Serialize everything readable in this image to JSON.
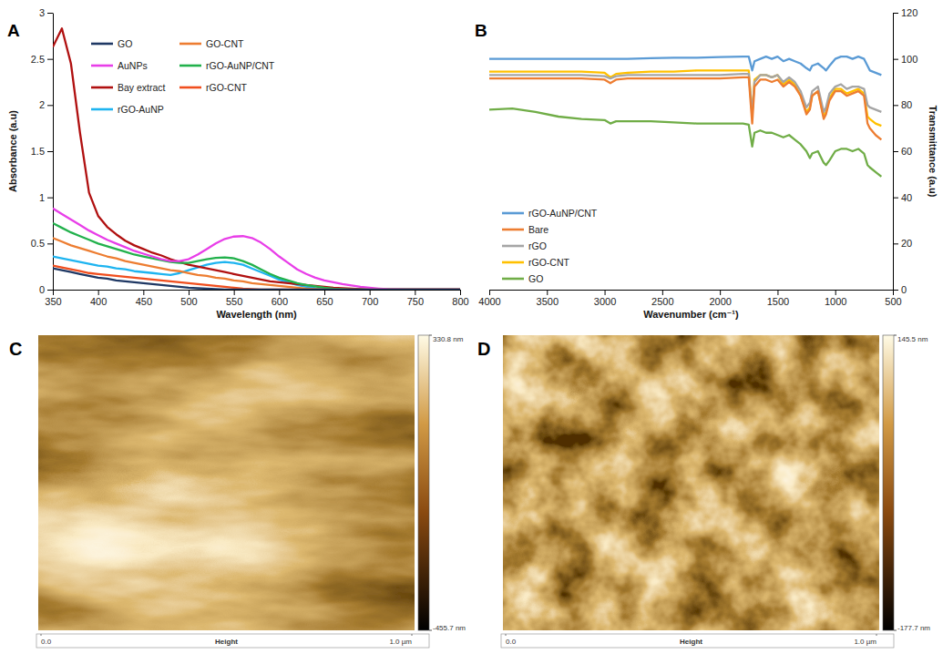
{
  "chart_data": [
    {
      "type": "line",
      "panel": "A",
      "xlabel": "Wavelength (nm)",
      "ylabel": "Absorbance (a.u)",
      "xlim": [
        350,
        800
      ],
      "xticks": [
        350,
        400,
        450,
        500,
        550,
        600,
        650,
        700,
        750,
        800
      ],
      "ylim": [
        0,
        3
      ],
      "yticks": [
        0,
        0.5,
        1,
        1.5,
        2,
        2.5,
        3
      ],
      "grid": false,
      "legend": "top-left",
      "x": [
        350,
        360,
        370,
        380,
        390,
        400,
        410,
        420,
        430,
        440,
        450,
        460,
        470,
        480,
        490,
        500,
        510,
        520,
        530,
        540,
        550,
        560,
        570,
        580,
        590,
        600,
        610,
        620,
        630,
        640,
        650,
        660,
        670,
        680,
        690,
        700,
        710,
        720,
        730,
        740,
        750,
        760,
        770,
        780,
        790,
        800
      ],
      "series": [
        {
          "name": "GO",
          "color": "#1f3864",
          "values": [
            0.23,
            0.21,
            0.19,
            0.17,
            0.15,
            0.13,
            0.12,
            0.1,
            0.09,
            0.08,
            0.07,
            0.06,
            0.05,
            0.04,
            0.03,
            0.02,
            0.015,
            0.01,
            0.005,
            0,
            0,
            0,
            0,
            0,
            0,
            0,
            0,
            0,
            0,
            0,
            0,
            0,
            0,
            0,
            0,
            0,
            0,
            0,
            0,
            0,
            0,
            0,
            0,
            0,
            0,
            0
          ]
        },
        {
          "name": "GO-CNT",
          "color": "#ed7d31",
          "values": [
            0.56,
            0.52,
            0.48,
            0.45,
            0.42,
            0.39,
            0.36,
            0.34,
            0.31,
            0.29,
            0.27,
            0.25,
            0.23,
            0.21,
            0.2,
            0.18,
            0.16,
            0.15,
            0.13,
            0.12,
            0.1,
            0.09,
            0.07,
            0.06,
            0.05,
            0.04,
            0.03,
            0.02,
            0.012,
            0.006,
            0,
            0,
            0,
            0,
            0,
            0,
            0,
            0,
            0,
            0,
            0,
            0,
            0,
            0,
            0,
            0
          ]
        },
        {
          "name": "AuNPs",
          "color": "#e83ee8",
          "values": [
            0.88,
            0.82,
            0.76,
            0.7,
            0.64,
            0.59,
            0.54,
            0.5,
            0.46,
            0.42,
            0.39,
            0.36,
            0.33,
            0.31,
            0.31,
            0.33,
            0.38,
            0.44,
            0.5,
            0.55,
            0.575,
            0.58,
            0.56,
            0.51,
            0.44,
            0.36,
            0.29,
            0.22,
            0.17,
            0.13,
            0.1,
            0.08,
            0.06,
            0.045,
            0.03,
            0.02,
            0.012,
            0.006,
            0.003,
            0.001,
            0,
            0,
            0,
            0,
            0,
            0
          ]
        },
        {
          "name": "rGO-AuNP/CNT",
          "color": "#22b14c",
          "values": [
            0.72,
            0.67,
            0.62,
            0.58,
            0.54,
            0.5,
            0.47,
            0.44,
            0.41,
            0.38,
            0.36,
            0.34,
            0.32,
            0.3,
            0.29,
            0.29,
            0.31,
            0.33,
            0.345,
            0.35,
            0.34,
            0.31,
            0.27,
            0.22,
            0.17,
            0.13,
            0.1,
            0.07,
            0.05,
            0.035,
            0.02,
            0.01,
            0.005,
            0,
            0,
            0,
            0,
            0,
            0,
            0,
            0,
            0,
            0,
            0,
            0,
            0
          ]
        },
        {
          "name": "Bay extract",
          "color": "#b01010",
          "values": [
            2.63,
            2.83,
            2.45,
            1.7,
            1.05,
            0.8,
            0.68,
            0.6,
            0.53,
            0.48,
            0.44,
            0.4,
            0.37,
            0.33,
            0.3,
            0.27,
            0.25,
            0.23,
            0.21,
            0.19,
            0.17,
            0.15,
            0.13,
            0.11,
            0.09,
            0.08,
            0.07,
            0.06,
            0.05,
            0.04,
            0.03,
            0.02,
            0.015,
            0.01,
            0.005,
            0,
            0,
            0,
            0,
            0,
            0,
            0,
            0,
            0,
            0,
            0
          ]
        },
        {
          "name": "rGO-CNT",
          "color": "#f04e1e",
          "values": [
            0.26,
            0.24,
            0.22,
            0.2,
            0.18,
            0.17,
            0.16,
            0.15,
            0.14,
            0.13,
            0.12,
            0.11,
            0.1,
            0.09,
            0.08,
            0.07,
            0.06,
            0.05,
            0.04,
            0.03,
            0.02,
            0.01,
            0.005,
            0,
            0,
            0,
            0,
            0,
            0,
            0,
            0,
            0,
            0,
            0,
            0,
            0,
            0,
            0,
            0,
            0,
            0,
            0,
            0,
            0,
            0,
            0
          ]
        },
        {
          "name": "rGO-AuNP",
          "color": "#1eb4f0",
          "values": [
            0.36,
            0.34,
            0.32,
            0.3,
            0.28,
            0.26,
            0.25,
            0.23,
            0.22,
            0.2,
            0.19,
            0.18,
            0.17,
            0.16,
            0.18,
            0.21,
            0.24,
            0.27,
            0.29,
            0.3,
            0.29,
            0.27,
            0.23,
            0.19,
            0.15,
            0.11,
            0.08,
            0.05,
            0.03,
            0.015,
            0.005,
            0,
            0,
            0,
            0,
            0,
            0,
            0,
            0,
            0,
            0,
            0,
            0,
            0,
            0,
            0
          ]
        }
      ]
    },
    {
      "type": "line",
      "panel": "B",
      "xlabel": "Wavenumber (cm⁻¹)",
      "ylabel": "Transmittance (a.u)",
      "xlim": [
        4000,
        500
      ],
      "xticks": [
        4000,
        3500,
        3000,
        2500,
        2000,
        1500,
        1000,
        500
      ],
      "ylim": [
        0,
        120
      ],
      "yticks": [
        0,
        20,
        40,
        60,
        80,
        100,
        120
      ],
      "grid": false,
      "legend": "bottom-left",
      "x": [
        4000,
        3800,
        3600,
        3400,
        3200,
        3000,
        2950,
        2900,
        2800,
        2600,
        2400,
        2200,
        2000,
        1800,
        1750,
        1720,
        1700,
        1650,
        1600,
        1550,
        1500,
        1450,
        1400,
        1350,
        1300,
        1250,
        1220,
        1200,
        1150,
        1100,
        1080,
        1050,
        1000,
        950,
        900,
        850,
        800,
        750,
        720,
        700,
        650,
        600
      ],
      "series": [
        {
          "name": "rGO-AuNP/CNT",
          "color": "#5b9bd5",
          "values": [
            100,
            100,
            100,
            100,
            100,
            100,
            100,
            100,
            100,
            100.3,
            100.5,
            100.5,
            100.8,
            101,
            101,
            95,
            99,
            100,
            101,
            100,
            101,
            99,
            100,
            99,
            98,
            96,
            95,
            97,
            98,
            96,
            95,
            97,
            100,
            101,
            101,
            100,
            101,
            100,
            97,
            95,
            94,
            93
          ]
        },
        {
          "name": "Bare",
          "color": "#ed7d31",
          "values": [
            91.5,
            91.5,
            91.5,
            91.5,
            91.5,
            91,
            89.5,
            91,
            91.5,
            91.5,
            91.5,
            91.5,
            91.5,
            92,
            92,
            72,
            88,
            91,
            91,
            90,
            91,
            88,
            90,
            88,
            84,
            76,
            78,
            84,
            86,
            74,
            76,
            82,
            86,
            86,
            84,
            85,
            86,
            84,
            72,
            70,
            67,
            65
          ]
        },
        {
          "name": "rGO",
          "color": "#a5a5a5",
          "values": [
            93,
            93,
            93,
            93,
            93,
            92.5,
            91.5,
            92.5,
            93,
            93,
            93,
            93,
            93,
            93.5,
            93.5,
            76,
            90,
            93,
            93,
            92,
            93,
            90,
            92,
            90,
            86,
            79,
            81,
            86,
            88,
            77,
            79,
            85,
            88,
            89,
            87,
            88,
            88,
            87,
            80,
            79,
            78,
            77
          ]
        },
        {
          "name": "rGO-CNT",
          "color": "#ffc000",
          "values": [
            94.5,
            94.5,
            94.5,
            94.5,
            94.5,
            94,
            92,
            93.5,
            94,
            94.5,
            94.5,
            95,
            95,
            95,
            95,
            76,
            91,
            93,
            93,
            92,
            93,
            89,
            91,
            89,
            84,
            77,
            79,
            84,
            86,
            75,
            77,
            83,
            87,
            87,
            85,
            86,
            87,
            85,
            75,
            74,
            72,
            71
          ]
        },
        {
          "name": "GO",
          "color": "#70ad47",
          "values": [
            78,
            78.5,
            77,
            75,
            74,
            73.5,
            72,
            73,
            73,
            73,
            72.5,
            72,
            72,
            72,
            71.5,
            62,
            68,
            69,
            68,
            68,
            67,
            66,
            67,
            65,
            63,
            60,
            57,
            59,
            60,
            55,
            54,
            56,
            60,
            61,
            61,
            60,
            61,
            59,
            54,
            53,
            51,
            49
          ]
        }
      ]
    },
    {
      "type": "image",
      "panel": "C",
      "xlabel": "Height",
      "xlim": [
        0,
        1
      ],
      "xticks": [
        {
          "value": 0,
          "label": "0.0"
        },
        {
          "value": 1,
          "label": "1.0 µm"
        }
      ],
      "colorbar_range": [
        -455.7,
        330.8
      ],
      "colorbar_ticks": [
        {
          "value": -455.7,
          "label": "-455.7 nm"
        },
        {
          "value": 330.8,
          "label": "330.8 nm"
        }
      ]
    },
    {
      "type": "image",
      "panel": "D",
      "xlabel": "Height",
      "xlim": [
        0,
        1
      ],
      "xticks": [
        {
          "value": 0,
          "label": "0.0"
        },
        {
          "value": 1,
          "label": "1.0 µm"
        }
      ],
      "colorbar_range": [
        -177.7,
        145.5
      ],
      "colorbar_ticks": [
        {
          "value": -177.7,
          "label": "-177.7 nm"
        },
        {
          "value": 145.5,
          "label": "145.5 nm"
        }
      ]
    }
  ]
}
